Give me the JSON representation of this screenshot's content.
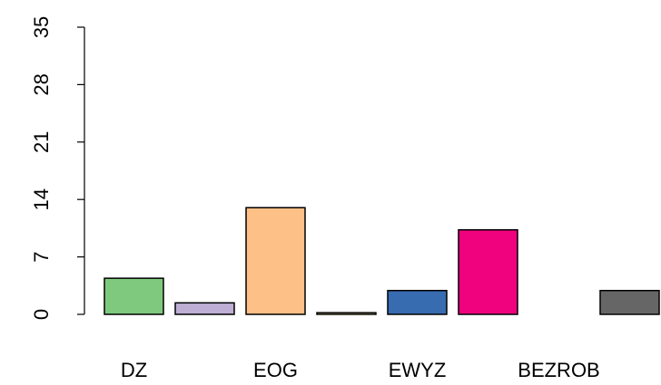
{
  "chart_data": {
    "type": "bar",
    "categories": [
      "DZ",
      null,
      "EOG",
      null,
      "EWYZ",
      null,
      "BEZROB",
      null
    ],
    "values": [
      4.4,
      1.4,
      13.0,
      0.2,
      2.9,
      10.3,
      0,
      2.9
    ],
    "colors": [
      "#7FC97F",
      "#BEAED4",
      "#FDC086",
      "#FFFF99",
      "#386CB0",
      "#F0027F",
      "#BF5B17",
      "#666666"
    ],
    "ylim": [
      0,
      35
    ],
    "yticks": [
      0,
      7,
      14,
      21,
      28,
      35
    ]
  }
}
